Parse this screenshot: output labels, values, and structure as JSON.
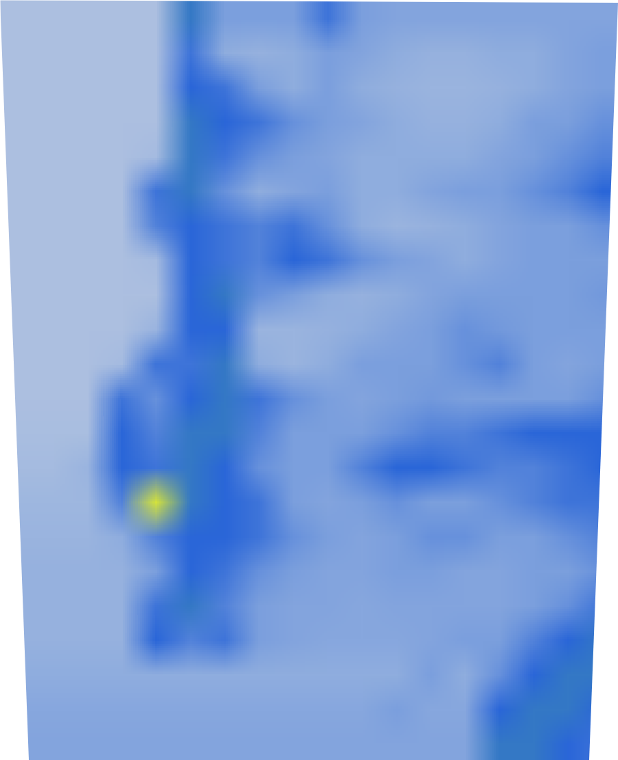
{
  "chart_data": {
    "type": "heatmap",
    "tick_labels": false,
    "zlim": [
      0,
      1
    ],
    "cells": [
      [
        0.12,
        0.12,
        0.12,
        0.12,
        0.12,
        0.55,
        0.3,
        0.3,
        0.3,
        0.45,
        0.3,
        0.28,
        0.28,
        0.28,
        0.28,
        0.28,
        0.28,
        0.28
      ],
      [
        0.12,
        0.12,
        0.12,
        0.12,
        0.12,
        0.45,
        0.25,
        0.22,
        0.25,
        0.3,
        0.28,
        0.25,
        0.22,
        0.22,
        0.25,
        0.25,
        0.28,
        0.3
      ],
      [
        0.12,
        0.12,
        0.12,
        0.12,
        0.12,
        0.5,
        0.45,
        0.3,
        0.25,
        0.3,
        0.25,
        0.22,
        0.2,
        0.2,
        0.22,
        0.25,
        0.28,
        0.3
      ],
      [
        0.12,
        0.12,
        0.12,
        0.12,
        0.12,
        0.55,
        0.5,
        0.45,
        0.35,
        0.3,
        0.28,
        0.25,
        0.22,
        0.22,
        0.25,
        0.3,
        0.3,
        0.35
      ],
      [
        0.12,
        0.12,
        0.12,
        0.12,
        0.15,
        0.55,
        0.45,
        0.35,
        0.3,
        0.28,
        0.25,
        0.25,
        0.25,
        0.25,
        0.28,
        0.3,
        0.35,
        0.4
      ],
      [
        0.12,
        0.12,
        0.12,
        0.12,
        0.45,
        0.55,
        0.35,
        0.25,
        0.28,
        0.3,
        0.25,
        0.25,
        0.28,
        0.3,
        0.3,
        0.35,
        0.4,
        0.5
      ],
      [
        0.12,
        0.12,
        0.12,
        0.12,
        0.4,
        0.5,
        0.45,
        0.4,
        0.45,
        0.35,
        0.25,
        0.2,
        0.22,
        0.25,
        0.28,
        0.3,
        0.3,
        0.35
      ],
      [
        0.12,
        0.12,
        0.12,
        0.12,
        0.15,
        0.5,
        0.45,
        0.4,
        0.5,
        0.45,
        0.35,
        0.3,
        0.28,
        0.25,
        0.28,
        0.3,
        0.3,
        0.3
      ],
      [
        0.12,
        0.12,
        0.12,
        0.12,
        0.12,
        0.5,
        0.55,
        0.35,
        0.3,
        0.25,
        0.22,
        0.25,
        0.28,
        0.3,
        0.3,
        0.3,
        0.3,
        0.32
      ],
      [
        0.12,
        0.12,
        0.12,
        0.12,
        0.2,
        0.5,
        0.5,
        0.2,
        0.2,
        0.22,
        0.25,
        0.28,
        0.3,
        0.35,
        0.32,
        0.3,
        0.3,
        0.3
      ],
      [
        0.12,
        0.12,
        0.12,
        0.15,
        0.45,
        0.45,
        0.55,
        0.25,
        0.2,
        0.25,
        0.3,
        0.3,
        0.3,
        0.35,
        0.4,
        0.3,
        0.28,
        0.3
      ],
      [
        0.12,
        0.12,
        0.12,
        0.45,
        0.35,
        0.5,
        0.55,
        0.45,
        0.35,
        0.3,
        0.28,
        0.3,
        0.32,
        0.3,
        0.3,
        0.3,
        0.3,
        0.35
      ],
      [
        0.13,
        0.13,
        0.13,
        0.5,
        0.4,
        0.55,
        0.55,
        0.4,
        0.3,
        0.3,
        0.3,
        0.35,
        0.4,
        0.4,
        0.45,
        0.5,
        0.5,
        0.5
      ],
      [
        0.15,
        0.15,
        0.2,
        0.5,
        0.45,
        0.55,
        0.5,
        0.35,
        0.3,
        0.3,
        0.4,
        0.5,
        0.5,
        0.45,
        0.4,
        0.4,
        0.45,
        0.5
      ],
      [
        0.18,
        0.18,
        0.18,
        0.4,
        0.95,
        0.55,
        0.5,
        0.45,
        0.3,
        0.28,
        0.3,
        0.35,
        0.3,
        0.3,
        0.35,
        0.4,
        0.45,
        0.45
      ],
      [
        0.2,
        0.2,
        0.2,
        0.25,
        0.4,
        0.5,
        0.5,
        0.45,
        0.35,
        0.3,
        0.28,
        0.3,
        0.35,
        0.35,
        0.3,
        0.3,
        0.35,
        0.4
      ],
      [
        0.22,
        0.22,
        0.22,
        0.22,
        0.3,
        0.5,
        0.45,
        0.35,
        0.3,
        0.28,
        0.28,
        0.3,
        0.3,
        0.28,
        0.28,
        0.3,
        0.3,
        0.35
      ],
      [
        0.22,
        0.22,
        0.22,
        0.22,
        0.45,
        0.55,
        0.4,
        0.3,
        0.28,
        0.28,
        0.27,
        0.28,
        0.28,
        0.28,
        0.28,
        0.3,
        0.35,
        0.45
      ],
      [
        0.22,
        0.22,
        0.22,
        0.22,
        0.5,
        0.4,
        0.45,
        0.3,
        0.28,
        0.27,
        0.27,
        0.27,
        0.28,
        0.3,
        0.3,
        0.4,
        0.5,
        0.55
      ],
      [
        0.25,
        0.25,
        0.25,
        0.25,
        0.25,
        0.25,
        0.25,
        0.25,
        0.25,
        0.25,
        0.25,
        0.25,
        0.3,
        0.25,
        0.35,
        0.5,
        0.55,
        0.55
      ],
      [
        0.27,
        0.27,
        0.27,
        0.27,
        0.27,
        0.27,
        0.27,
        0.27,
        0.27,
        0.27,
        0.27,
        0.3,
        0.27,
        0.27,
        0.5,
        0.55,
        0.55,
        0.5
      ],
      [
        0.28,
        0.28,
        0.28,
        0.28,
        0.28,
        0.28,
        0.28,
        0.28,
        0.28,
        0.28,
        0.28,
        0.28,
        0.28,
        0.28,
        0.55,
        0.55,
        0.5,
        0.45
      ]
    ]
  }
}
